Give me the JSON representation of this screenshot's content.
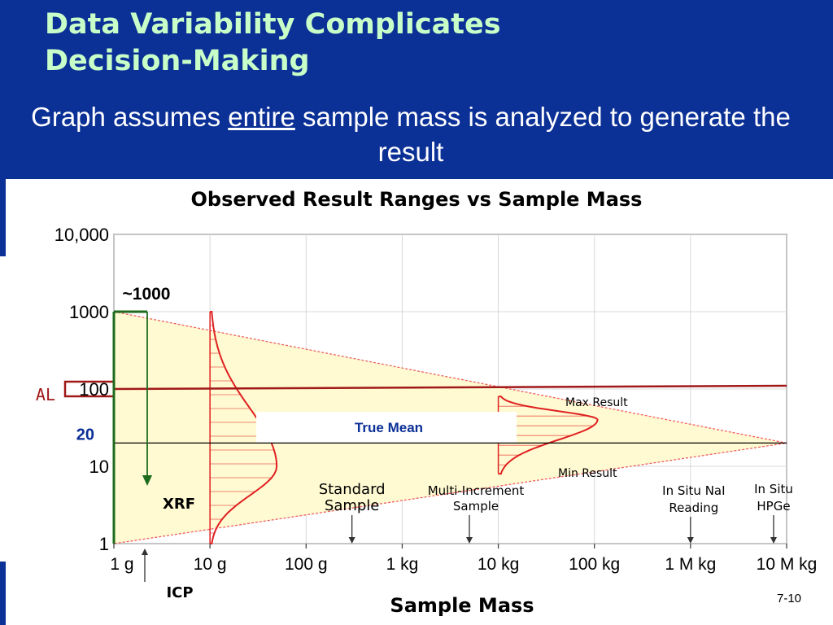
{
  "slide": {
    "title_line1": "Data Variability Complicates",
    "title_line2": "Decision-Making",
    "subtitle_before": "Graph assumes ",
    "subtitle_emph": "entire",
    "subtitle_after": " sample mass is analyzed to generate the result",
    "slide_number": "7-10",
    "colors": {
      "header_bg": "#0b3096",
      "title_text": "#c8ffc8"
    }
  },
  "chart_data": {
    "type": "area",
    "title": "Observed Result Ranges vs Sample Mass",
    "xlabel": "Sample Mass",
    "ylabel": "",
    "x_scale": "log",
    "y_scale": "log",
    "x_ticks": [
      {
        "grams": 1,
        "label": "1 g"
      },
      {
        "grams": 10,
        "label": "10 g"
      },
      {
        "grams": 100,
        "label": "100 g"
      },
      {
        "grams": 1000,
        "label": "1 kg"
      },
      {
        "grams": 10000,
        "label": "10 kg"
      },
      {
        "grams": 100000,
        "label": "100 kg"
      },
      {
        "grams": 1000000,
        "label": "1 M kg"
      },
      {
        "grams": 10000000,
        "label": "10 M kg"
      }
    ],
    "y_ticks": [
      {
        "value": 1,
        "label": "1"
      },
      {
        "value": 10,
        "label": "10"
      },
      {
        "value": 100,
        "label": "100"
      },
      {
        "value": 1000,
        "label": "1000"
      },
      {
        "value": 10000,
        "label": "10,000"
      }
    ],
    "xlim_grams": [
      1,
      10000000
    ],
    "ylim": [
      1,
      10000
    ],
    "range_band": {
      "upper": [
        [
          1,
          1000
        ],
        [
          10000000,
          20
        ]
      ],
      "lower": [
        [
          1,
          1
        ],
        [
          10000000,
          20
        ]
      ]
    },
    "true_mean": 20,
    "action_level": 100,
    "labels": {
      "true_mean": "True Mean",
      "max_result": "Max Result",
      "min_result": "Min Result",
      "action_level": "AL",
      "mean_value": "20",
      "xrf_max": "~1000"
    },
    "distributions": [
      {
        "mass_g": 10,
        "min": 1,
        "max": 1000,
        "peak_value": 10
      },
      {
        "mass_g": 10000,
        "min": 8,
        "max": 80,
        "peak_value": 40
      }
    ],
    "annotations": [
      {
        "text": "XRF",
        "mass_g": 1
      },
      {
        "text": "ICP",
        "mass_g": 1
      },
      {
        "text": "Standard Sample",
        "mass_g": 300
      },
      {
        "text": "Multi-Increment Sample",
        "mass_g": 5000
      },
      {
        "text": "In Situ NaI Reading",
        "mass_g": 1000000
      },
      {
        "text": "In Situ HPGe",
        "mass_g": 10000000
      }
    ],
    "colors": {
      "band_fill": "#fffad2",
      "band_edge": "#f06060",
      "distribution": "#e02020",
      "action_level": "#a01818",
      "xrf_arrow": "#1d6b1d",
      "true_mean_text": "#0b3096"
    }
  }
}
